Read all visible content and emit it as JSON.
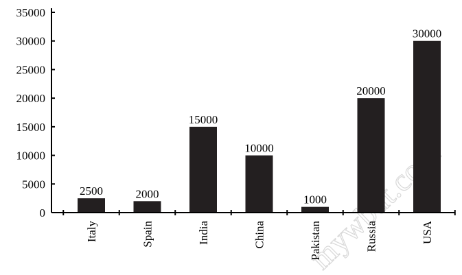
{
  "chart_data": {
    "type": "bar",
    "categories": [
      "Italy",
      "Spain",
      "India",
      "China",
      "Pakistan",
      "Russia",
      "USA"
    ],
    "values": [
      2500,
      2000,
      15000,
      10000,
      1000,
      20000,
      30000
    ],
    "data_labels": [
      "2500",
      "2000",
      "15000",
      "10000",
      "1000",
      "20000",
      "30000"
    ],
    "yticks": [
      0,
      5000,
      10000,
      15000,
      20000,
      25000,
      30000,
      35000
    ],
    "ylim": [
      0,
      35000
    ],
    "title": "",
    "xlabel": "",
    "ylabel": "",
    "grid": false,
    "bar_color": "#231f20",
    "watermark": "mywbut.com"
  }
}
